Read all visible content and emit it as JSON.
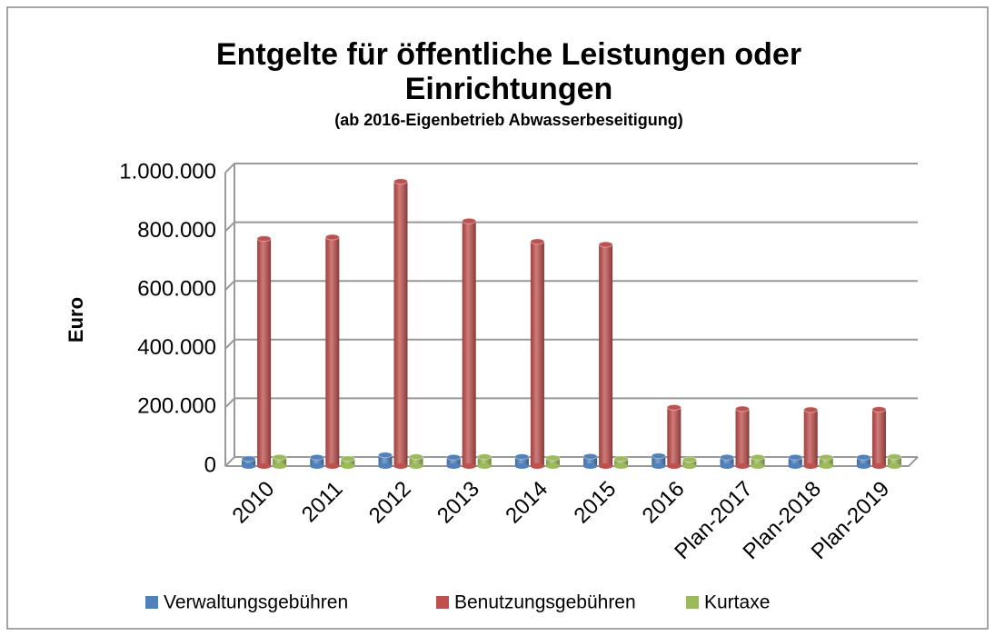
{
  "chart_data": {
    "type": "bar3d",
    "title": "Entgelte für öffentliche Leistungen oder Einrichtungen",
    "title_lines": [
      "Entgelte für öffentliche Leistungen oder",
      "Einrichtungen"
    ],
    "subtitle": "(ab 2016-Eigenbetrieb  Abwasserbeseitigung)",
    "y_label": "Euro",
    "categories": [
      "2010",
      "2011",
      "2012",
      "2013",
      "2014",
      "2015",
      "2016",
      "Plan-2017",
      "Plan-2018",
      "Plan-2019"
    ],
    "series": [
      {
        "name": "Verwaltungsgebühren",
        "color": "#4f81bd",
        "values": [
          25000,
          30000,
          38000,
          30000,
          32000,
          33000,
          35000,
          30000,
          30000,
          30000
        ]
      },
      {
        "name": "Benutzungsgebühren",
        "color": "#c0504d",
        "values": [
          775000,
          780000,
          970000,
          835000,
          765000,
          755000,
          200000,
          195000,
          192000,
          193000
        ]
      },
      {
        "name": "Kurtaxe",
        "color": "#9bbb59",
        "values": [
          30000,
          25000,
          32000,
          32000,
          28000,
          25000,
          22000,
          30000,
          30000,
          32000
        ]
      }
    ],
    "ylim": [
      0,
      1000000
    ],
    "yticks": [
      0,
      {
        "value": 200000,
        "label": "200.000"
      },
      {
        "value": 400000,
        "label": "400.000"
      },
      {
        "value": 600000,
        "label": "600.000"
      },
      {
        "value": 800000,
        "label": "800.000"
      },
      {
        "value": 1000000,
        "label": "1.000.000"
      }
    ],
    "grid": true,
    "legend": "bottom"
  }
}
